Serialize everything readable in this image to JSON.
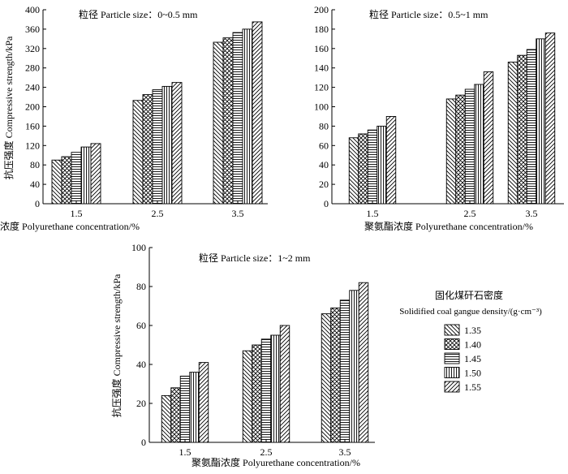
{
  "chart_data": [
    {
      "type": "bar",
      "title": "粒径 Particle size：0~0.5 mm",
      "xlabel": "聚氨酯浓度 Polyurethane concentration/%",
      "ylabel": "抗压强度 Compressive strength/kPa",
      "categories": [
        "1.5",
        "2.5",
        "3.5"
      ],
      "ylim": [
        0,
        400
      ],
      "yticks": [
        0,
        40,
        80,
        120,
        160,
        200,
        240,
        280,
        320,
        360,
        400
      ],
      "series": [
        {
          "name": "1.35",
          "values": [
            90,
            213,
            333
          ]
        },
        {
          "name": "1.40",
          "values": [
            97,
            225,
            342
          ]
        },
        {
          "name": "1.45",
          "values": [
            106,
            235,
            353
          ]
        },
        {
          "name": "1.50",
          "values": [
            117,
            242,
            360
          ]
        },
        {
          "name": "1.55",
          "values": [
            124,
            250,
            375
          ]
        }
      ]
    },
    {
      "type": "bar",
      "title": "粒径 Particle size：0.5~1 mm",
      "xlabel": "聚氨酯浓度 Polyurethane concentration/%",
      "ylabel": "",
      "categories": [
        "1.5",
        "2.5",
        "3.5"
      ],
      "ylim": [
        0,
        200
      ],
      "yticks": [
        0,
        20,
        40,
        60,
        80,
        100,
        120,
        140,
        160,
        180,
        200
      ],
      "series": [
        {
          "name": "1.35",
          "values": [
            68,
            108,
            146
          ]
        },
        {
          "name": "1.40",
          "values": [
            72,
            112,
            153
          ]
        },
        {
          "name": "1.45",
          "values": [
            76,
            118,
            159
          ]
        },
        {
          "name": "1.50",
          "values": [
            80,
            123,
            170
          ]
        },
        {
          "name": "1.55",
          "values": [
            90,
            136,
            176
          ]
        }
      ]
    },
    {
      "type": "bar",
      "title": "粒径 Particle size：1~2 mm",
      "xlabel": "聚氨酯浓度 Polyurethane concentration/%",
      "ylabel": "抗压强度 Compressive strength/kPa",
      "categories": [
        "1.5",
        "2.5",
        "3.5"
      ],
      "ylim": [
        0,
        100
      ],
      "yticks": [
        0,
        20,
        40,
        60,
        80,
        100
      ],
      "series": [
        {
          "name": "1.35",
          "values": [
            24,
            47,
            66
          ]
        },
        {
          "name": "1.40",
          "values": [
            28,
            50,
            69
          ]
        },
        {
          "name": "1.45",
          "values": [
            34,
            53,
            73
          ]
        },
        {
          "name": "1.50",
          "values": [
            36,
            55,
            78
          ]
        },
        {
          "name": "1.55",
          "values": [
            41,
            60,
            82
          ]
        }
      ]
    }
  ],
  "legend": {
    "title_cn": "固化煤矸石密度",
    "title_en": "Solidified coal gangue density/(g·cm⁻³)",
    "entries": [
      "1.35",
      "1.40",
      "1.45",
      "1.50",
      "1.55"
    ]
  },
  "patterns": [
    "diag-back",
    "crosshatch",
    "horizontal",
    "vertical",
    "diag-fwd"
  ]
}
